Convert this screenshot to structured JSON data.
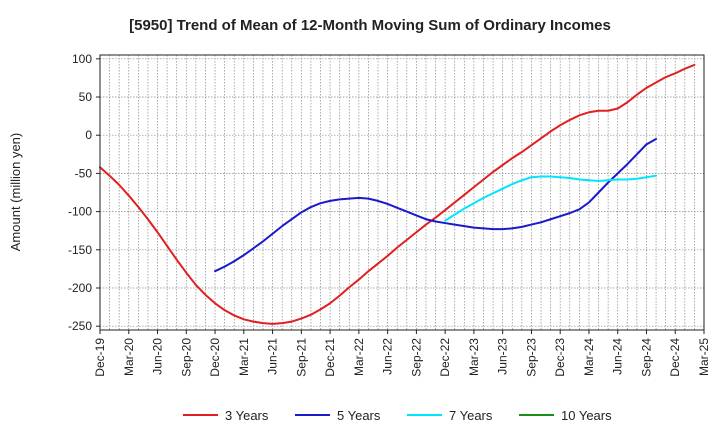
{
  "chart_data": {
    "type": "line",
    "title": "[5950]  Trend of Mean of 12-Month Moving Sum of Ordinary Incomes",
    "xlabel": "",
    "ylabel": "Amount (million yen)",
    "ylim": [
      -255,
      105
    ],
    "yticks": [
      100,
      50,
      0,
      -50,
      -100,
      -150,
      -200,
      -250
    ],
    "x_tick_labels": [
      "Dec-19",
      "Mar-20",
      "Jun-20",
      "Sep-20",
      "Dec-20",
      "Mar-21",
      "Jun-21",
      "Sep-21",
      "Dec-21",
      "Mar-22",
      "Jun-22",
      "Sep-22",
      "Dec-22",
      "Mar-23",
      "Jun-23",
      "Sep-23",
      "Dec-23",
      "Mar-24",
      "Jun-24",
      "Sep-24",
      "Dec-24",
      "Mar-25"
    ],
    "x_months_total": 63,
    "grid": true,
    "legend_position": "bottom",
    "series": [
      {
        "name": "3 Years",
        "color": "#e02020",
        "start_month": 0,
        "values": [
          -42,
          -53,
          -65,
          -79,
          -94,
          -110,
          -127,
          -145,
          -163,
          -180,
          -196,
          -209,
          -220,
          -229,
          -236,
          -241,
          -244,
          -246,
          -247,
          -246,
          -244,
          -240,
          -235,
          -228,
          -220,
          -210,
          -199,
          -189,
          -178,
          -168,
          -158,
          -147,
          -137,
          -127,
          -117,
          -108,
          -98,
          -88,
          -78,
          -68,
          -58,
          -48,
          -39,
          -30,
          -22,
          -13,
          -4,
          5,
          13,
          20,
          26,
          30,
          32,
          32,
          35,
          43,
          53,
          62,
          69,
          76,
          81,
          87,
          92
        ]
      },
      {
        "name": "5 Years",
        "color": "#1a1acc",
        "start_month": 12,
        "values": [
          -178,
          -172,
          -165,
          -157,
          -148,
          -139,
          -129,
          -119,
          -110,
          -101,
          -94,
          -89,
          -86,
          -84,
          -83,
          -82,
          -83,
          -86,
          -90,
          -95,
          -100,
          -105,
          -110,
          -113,
          -115,
          -117,
          -119,
          -121,
          -122,
          -123,
          -123,
          -122,
          -120,
          -117,
          -114,
          -110,
          -106,
          -102,
          -97,
          -88,
          -75,
          -62,
          -50,
          -38,
          -25,
          -12,
          -5
        ]
      },
      {
        "name": "7 Years",
        "color": "#00e5ff",
        "start_month": 36,
        "values": [
          -112,
          -104,
          -96,
          -89,
          -82,
          -76,
          -70,
          -64,
          -59,
          -55,
          -54,
          -54,
          -55,
          -56,
          -58,
          -59,
          -60,
          -59,
          -58,
          -58,
          -57,
          -55,
          -53
        ]
      },
      {
        "name": "10 Years",
        "color": "#1a8c1a",
        "start_month": 0,
        "values": []
      }
    ]
  }
}
